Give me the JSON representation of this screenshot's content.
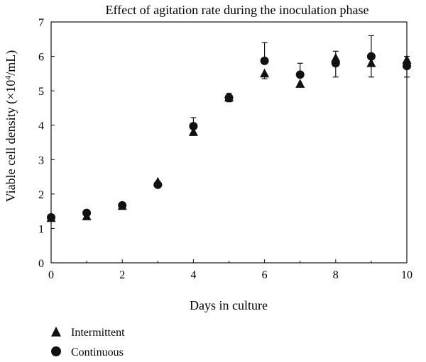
{
  "chart_data": {
    "type": "scatter",
    "title": "Effect of agitation rate during the inoculation phase",
    "xlabel": "Days in culture",
    "ylabel_prefix": "Viable cell density (×10",
    "ylabel_sup": "4",
    "ylabel_suffix": "/mL)",
    "xlim": [
      0,
      10
    ],
    "ylim": [
      0,
      7
    ],
    "x_ticks": [
      "0",
      "2",
      "4",
      "6",
      "8",
      "10"
    ],
    "y_ticks": [
      "0",
      "1",
      "2",
      "3",
      "4",
      "5",
      "6",
      "7"
    ],
    "grid": false,
    "legend_position": "bottom-left",
    "series": [
      {
        "name": "Intermittent",
        "marker": "triangle",
        "points": [
          {
            "x": 0,
            "y": 1.3
          },
          {
            "x": 1,
            "y": 1.35
          },
          {
            "x": 2,
            "y": 1.65
          },
          {
            "x": 3,
            "y": 2.35
          },
          {
            "x": 4,
            "y": 3.8
          },
          {
            "x": 5,
            "y": 4.8
          },
          {
            "x": 6,
            "y": 5.5,
            "err_low": 5.35
          },
          {
            "x": 7,
            "y": 5.2
          },
          {
            "x": 8,
            "y": 5.95,
            "err_high": 6.15
          },
          {
            "x": 9,
            "y": 5.8
          },
          {
            "x": 10,
            "y": 5.9,
            "err_high": 6.0
          }
        ]
      },
      {
        "name": "Continuous",
        "marker": "circle",
        "points": [
          {
            "x": 0,
            "y": 1.32
          },
          {
            "x": 1,
            "y": 1.45
          },
          {
            "x": 2,
            "y": 1.67
          },
          {
            "x": 3,
            "y": 2.27
          },
          {
            "x": 4,
            "y": 3.97,
            "err_high": 4.22
          },
          {
            "x": 5,
            "y": 4.8,
            "err_low": 4.68,
            "err_high": 4.93
          },
          {
            "x": 6,
            "y": 5.87,
            "err_high": 6.4
          },
          {
            "x": 7,
            "y": 5.47,
            "err_high": 5.8
          },
          {
            "x": 8,
            "y": 5.8,
            "err_low": 5.4
          },
          {
            "x": 9,
            "y": 6.0,
            "err_low": 5.4,
            "err_high": 6.6
          },
          {
            "x": 10,
            "y": 5.72,
            "err_low": 5.4
          }
        ]
      }
    ]
  }
}
